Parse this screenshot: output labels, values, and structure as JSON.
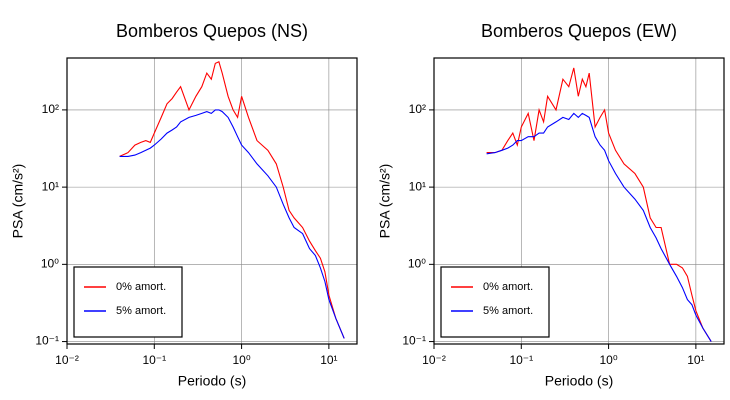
{
  "chart_data": [
    {
      "type": "line",
      "title": "Bomberos Quepos (NS)",
      "xlabel": "Periodo (s)",
      "ylabel": "PSA (cm/s²)",
      "xscale": "log",
      "yscale": "log",
      "grid": true,
      "legend": "lower left",
      "xlim": [
        0.01,
        21
      ],
      "ylim": [
        0.093,
        470
      ],
      "xticks": [
        {
          "value": 0.01,
          "label": "10⁻²"
        },
        {
          "value": 0.1,
          "label": "10⁻¹"
        },
        {
          "value": 1,
          "label": "10⁰"
        },
        {
          "value": 10,
          "label": "10¹"
        }
      ],
      "yticks": [
        {
          "value": 0.1,
          "label": "10⁻¹"
        },
        {
          "value": 1,
          "label": "10⁰"
        },
        {
          "value": 10,
          "label": "10¹"
        },
        {
          "value": 100,
          "label": "10²"
        }
      ],
      "x": [
        0.04,
        0.05,
        0.06,
        0.07,
        0.08,
        0.09,
        0.1,
        0.12,
        0.14,
        0.16,
        0.18,
        0.2,
        0.25,
        0.3,
        0.35,
        0.4,
        0.45,
        0.5,
        0.55,
        0.6,
        0.7,
        0.8,
        0.9,
        1.0,
        1.2,
        1.5,
        2,
        2.5,
        3,
        3.5,
        4,
        5,
        6,
        7,
        8,
        9,
        10,
        12,
        15
      ],
      "series": [
        {
          "name": "0% amort.",
          "color": "#ff0000",
          "values": [
            25,
            28,
            35,
            38,
            40,
            38,
            50,
            80,
            120,
            140,
            170,
            200,
            100,
            150,
            200,
            300,
            250,
            400,
            420,
            300,
            150,
            100,
            80,
            150,
            80,
            40,
            30,
            20,
            10,
            5,
            4,
            3,
            2,
            1.5,
            1.2,
            0.8,
            0.4,
            0.2,
            0.11
          ]
        },
        {
          "name": "5% amort.",
          "color": "#0000ff",
          "values": [
            25,
            25,
            26,
            28,
            30,
            32,
            35,
            42,
            50,
            55,
            60,
            70,
            80,
            85,
            90,
            95,
            90,
            100,
            100,
            95,
            80,
            60,
            45,
            35,
            28,
            20,
            14,
            10,
            6,
            4,
            3,
            2.5,
            1.6,
            1.3,
            0.9,
            0.6,
            0.35,
            0.2,
            0.11
          ]
        }
      ]
    },
    {
      "type": "line",
      "title": "Bomberos Quepos (EW)",
      "xlabel": "Periodo (s)",
      "ylabel": "PSA (cm/s²)",
      "xscale": "log",
      "yscale": "log",
      "grid": true,
      "legend": "lower left",
      "xlim": [
        0.01,
        21
      ],
      "ylim": [
        0.093,
        470
      ],
      "xticks": [
        {
          "value": 0.01,
          "label": "10⁻²"
        },
        {
          "value": 0.1,
          "label": "10⁻¹"
        },
        {
          "value": 1,
          "label": "10⁰"
        },
        {
          "value": 10,
          "label": "10¹"
        }
      ],
      "yticks": [
        {
          "value": 0.1,
          "label": "10⁻¹"
        },
        {
          "value": 1,
          "label": "10⁰"
        },
        {
          "value": 10,
          "label": "10¹"
        },
        {
          "value": 100,
          "label": "10²"
        }
      ],
      "x": [
        0.04,
        0.05,
        0.06,
        0.07,
        0.08,
        0.09,
        0.1,
        0.12,
        0.14,
        0.16,
        0.18,
        0.2,
        0.25,
        0.3,
        0.35,
        0.4,
        0.45,
        0.5,
        0.55,
        0.6,
        0.7,
        0.8,
        0.9,
        1.0,
        1.2,
        1.5,
        2,
        2.5,
        3,
        3.5,
        4,
        5,
        6,
        7,
        8,
        9,
        10,
        12,
        15
      ],
      "series": [
        {
          "name": "0% amort.",
          "color": "#ff0000",
          "values": [
            28,
            28,
            30,
            40,
            50,
            35,
            60,
            90,
            40,
            100,
            70,
            150,
            100,
            250,
            200,
            350,
            150,
            250,
            200,
            300,
            60,
            80,
            100,
            50,
            30,
            20,
            15,
            10,
            4,
            3,
            3,
            1,
            1,
            0.9,
            0.7,
            0.4,
            0.25,
            0.15,
            0.1
          ]
        },
        {
          "name": "5% amort.",
          "color": "#0000ff",
          "values": [
            27,
            28,
            30,
            32,
            35,
            40,
            40,
            45,
            45,
            50,
            50,
            60,
            70,
            80,
            75,
            90,
            80,
            90,
            85,
            80,
            45,
            35,
            30,
            22,
            15,
            10,
            7,
            5,
            3,
            2.2,
            1.6,
            1,
            0.7,
            0.5,
            0.35,
            0.3,
            0.22,
            0.15,
            0.1
          ]
        }
      ]
    }
  ]
}
